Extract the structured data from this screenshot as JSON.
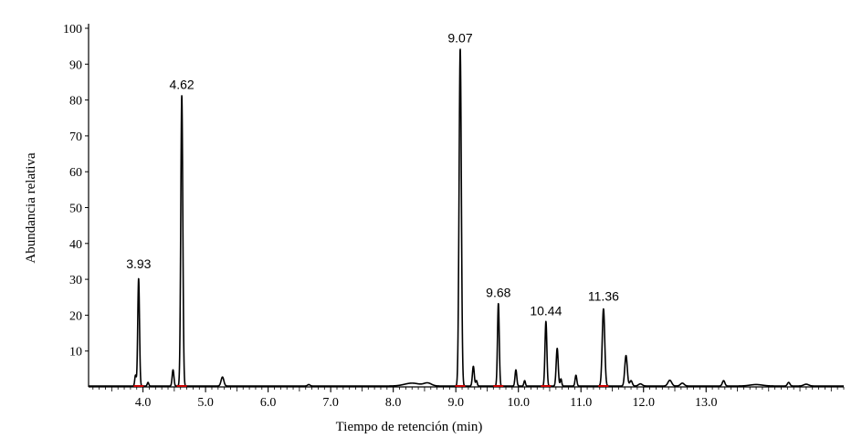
{
  "chart_data": {
    "type": "line",
    "title": "",
    "xlabel": "Tiempo de retención (min)",
    "ylabel": "Abundancia relativa",
    "xlim": [
      3.13,
      15.2
    ],
    "ylim": [
      0,
      100
    ],
    "x_ticks": [
      4.0,
      5.0,
      6.0,
      7.0,
      8.0,
      9.0,
      10.0,
      11.0,
      12.0,
      13.0
    ],
    "x_tick_labels": [
      "4.0",
      "5.0",
      "6.0",
      "7.0",
      "8.0",
      "9.0",
      "10.0",
      "11.0",
      "12.0",
      "13.0"
    ],
    "y_ticks": [
      10,
      20,
      30,
      40,
      50,
      60,
      70,
      80,
      90,
      100
    ],
    "y_tick_labels": [
      "10",
      "20",
      "30",
      "40",
      "50",
      "60",
      "70",
      "80",
      "90",
      "100"
    ],
    "grid": false,
    "line_color": "#000000",
    "baseline_mark_color": "#cc0000",
    "peak_labels": [
      {
        "x": 3.93,
        "y": 31,
        "text": "3.93"
      },
      {
        "x": 4.62,
        "y": 81,
        "text": "4.62"
      },
      {
        "x": 9.07,
        "y": 94,
        "text": "9.07"
      },
      {
        "x": 9.68,
        "y": 23,
        "text": "9.68"
      },
      {
        "x": 10.44,
        "y": 18,
        "text": "10.44"
      },
      {
        "x": 11.36,
        "y": 22,
        "text": "11.36"
      }
    ],
    "peaks": [
      {
        "x": 3.88,
        "y": 3.0,
        "w": 0.012
      },
      {
        "x": 3.93,
        "y": 30.0,
        "w": 0.014
      },
      {
        "x": 4.08,
        "y": 1.0,
        "w": 0.012
      },
      {
        "x": 4.48,
        "y": 4.5,
        "w": 0.014
      },
      {
        "x": 4.62,
        "y": 81.0,
        "w": 0.016
      },
      {
        "x": 5.27,
        "y": 2.5,
        "w": 0.022
      },
      {
        "x": 6.65,
        "y": 0.4,
        "w": 0.02
      },
      {
        "x": 8.3,
        "y": 0.8,
        "w": 0.12
      },
      {
        "x": 8.55,
        "y": 0.8,
        "w": 0.06
      },
      {
        "x": 9.07,
        "y": 94.0,
        "w": 0.018
      },
      {
        "x": 9.28,
        "y": 5.5,
        "w": 0.015
      },
      {
        "x": 9.33,
        "y": 1.5,
        "w": 0.012
      },
      {
        "x": 9.68,
        "y": 23.0,
        "w": 0.014
      },
      {
        "x": 9.96,
        "y": 4.5,
        "w": 0.014
      },
      {
        "x": 10.1,
        "y": 1.5,
        "w": 0.012
      },
      {
        "x": 10.44,
        "y": 18.0,
        "w": 0.015
      },
      {
        "x": 10.62,
        "y": 10.5,
        "w": 0.016
      },
      {
        "x": 10.68,
        "y": 2.0,
        "w": 0.012
      },
      {
        "x": 10.92,
        "y": 3.0,
        "w": 0.014
      },
      {
        "x": 11.36,
        "y": 21.5,
        "w": 0.02
      },
      {
        "x": 11.72,
        "y": 8.5,
        "w": 0.02
      },
      {
        "x": 11.8,
        "y": 1.5,
        "w": 0.02
      },
      {
        "x": 11.95,
        "y": 0.6,
        "w": 0.03
      },
      {
        "x": 12.42,
        "y": 1.6,
        "w": 0.03
      },
      {
        "x": 12.62,
        "y": 0.8,
        "w": 0.03
      },
      {
        "x": 13.28,
        "y": 1.5,
        "w": 0.02
      },
      {
        "x": 13.8,
        "y": 0.4,
        "w": 0.1
      },
      {
        "x": 14.32,
        "y": 1.0,
        "w": 0.02
      },
      {
        "x": 14.6,
        "y": 0.5,
        "w": 0.04
      }
    ],
    "baseline_marks": [
      3.93,
      4.62,
      9.07,
      9.68,
      10.44,
      11.36
    ]
  }
}
